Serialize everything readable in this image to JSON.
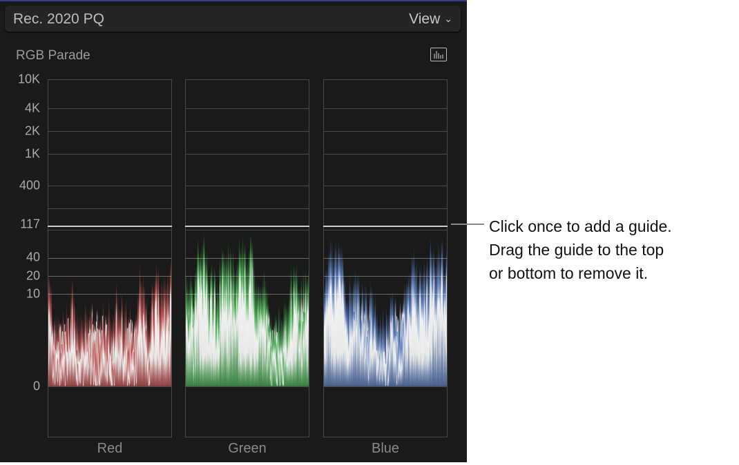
{
  "header": {
    "title": "Rec. 2020 PQ",
    "view_label": "View",
    "view_icon": "chevron-down-icon"
  },
  "scope": {
    "title": "RGB Parade",
    "settings_icon": "waveform-display-icon"
  },
  "y_axis": {
    "labels": [
      "10K",
      "4K",
      "2K",
      "1K",
      "400",
      "117",
      "40",
      "20",
      "10",
      "0"
    ]
  },
  "channels": [
    {
      "label": "Red",
      "color": "#ff6a6a"
    },
    {
      "label": "Green",
      "color": "#5be66a"
    },
    {
      "label": "Blue",
      "color": "#7aa8ff"
    }
  ],
  "guide": {
    "value": "117"
  },
  "callout": {
    "text": "Click once to add a guide.\nDrag the guide to the top\nor bottom to remove it."
  }
}
